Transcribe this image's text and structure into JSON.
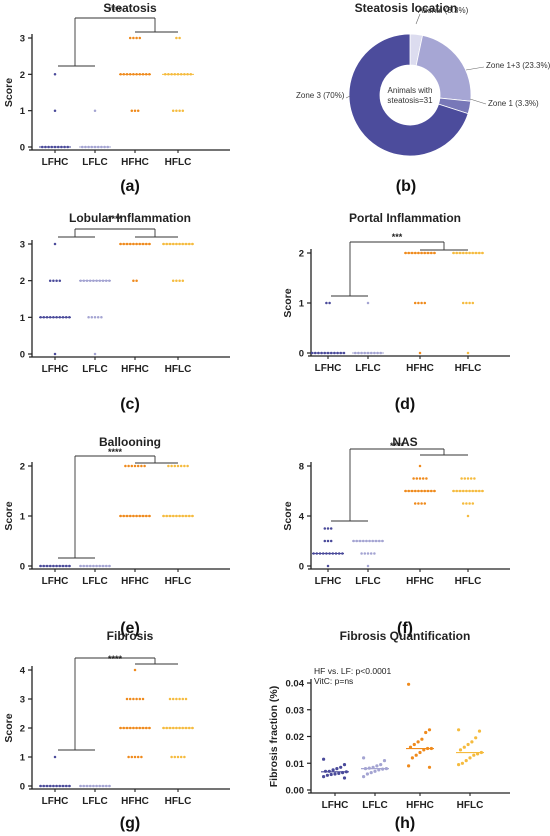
{
  "figure": {
    "colors": {
      "LFHC": "#4a4a9a",
      "LFLC": "#a4a4d2",
      "HFHC": "#ef8a1c",
      "HFLC": "#f5bb3e",
      "axis": "#222222"
    }
  },
  "chart_data": [
    {
      "id": "a",
      "type": "scatter",
      "title": "Steatosis",
      "caption": "(a)",
      "ylabel": "Score",
      "ylim": [
        0,
        3
      ],
      "yticks": [
        "0",
        "1",
        "2",
        "3"
      ],
      "categories": [
        "LFHC",
        "LFLC",
        "HFHC",
        "HFLC"
      ],
      "significance": "****",
      "series": [
        {
          "group": "LFHC",
          "points": [
            {
              "y": 2,
              "n": 1
            },
            {
              "y": 1,
              "n": 1
            },
            {
              "y": 0,
              "n": 9
            }
          ]
        },
        {
          "group": "LFLC",
          "points": [
            {
              "y": 1,
              "n": 1
            },
            {
              "y": 0,
              "n": 9
            }
          ]
        },
        {
          "group": "HFHC",
          "points": [
            {
              "y": 3,
              "n": 4
            },
            {
              "y": 2,
              "n": 10
            },
            {
              "y": 1,
              "n": 3
            }
          ]
        },
        {
          "group": "HFLC",
          "points": [
            {
              "y": 3,
              "n": 2
            },
            {
              "y": 2,
              "n": 9
            },
            {
              "y": 1,
              "n": 4
            }
          ]
        }
      ]
    },
    {
      "id": "b",
      "type": "pie",
      "title": "Steatosis location",
      "caption": "(b)",
      "center_label": [
        "Animals with",
        "steatosis=31"
      ],
      "slices": [
        {
          "label": "Azonal (3.3%)",
          "value": 3.3
        },
        {
          "label": "Zone 1+3 (23.3%)",
          "value": 23.3
        },
        {
          "label": "Zone 1 (3.3%)",
          "value": 3.3
        },
        {
          "label": "Zone 3 (70%)",
          "value": 70
        }
      ]
    },
    {
      "id": "c",
      "type": "scatter",
      "title": "Lobular Inflammation",
      "caption": "(c)",
      "ylabel": "",
      "ylim": [
        0,
        3
      ],
      "yticks": [
        "0",
        "1",
        "2",
        "3"
      ],
      "categories": [
        "LFHC",
        "LFLC",
        "HFHC",
        "HFLC"
      ],
      "significance": "****",
      "series": [
        {
          "group": "LFHC",
          "points": [
            {
              "y": 3,
              "n": 1
            },
            {
              "y": 2,
              "n": 4
            },
            {
              "y": 1,
              "n": 10
            },
            {
              "y": 0,
              "n": 1
            }
          ]
        },
        {
          "group": "LFLC",
          "points": [
            {
              "y": 2,
              "n": 10
            },
            {
              "y": 1,
              "n": 5
            },
            {
              "y": 0,
              "n": 1
            }
          ]
        },
        {
          "group": "HFHC",
          "points": [
            {
              "y": 3,
              "n": 10
            },
            {
              "y": 2,
              "n": 2
            }
          ]
        },
        {
          "group": "HFLC",
          "points": [
            {
              "y": 3,
              "n": 10
            },
            {
              "y": 2,
              "n": 4
            }
          ]
        }
      ]
    },
    {
      "id": "d",
      "type": "scatter",
      "title": "Portal Inflammation",
      "caption": "(d)",
      "ylabel": "Score",
      "ylim": [
        0,
        2
      ],
      "yticks": [
        "0",
        "1",
        "2"
      ],
      "categories": [
        "LFHC",
        "LFLC",
        "HFHC",
        "HFLC"
      ],
      "significance": "***",
      "series": [
        {
          "group": "LFHC",
          "points": [
            {
              "y": 1,
              "n": 2
            },
            {
              "y": 0,
              "n": 11
            }
          ]
        },
        {
          "group": "LFLC",
          "points": [
            {
              "y": 1,
              "n": 1
            },
            {
              "y": 0,
              "n": 9
            }
          ]
        },
        {
          "group": "HFHC",
          "points": [
            {
              "y": 2,
              "n": 10
            },
            {
              "y": 1,
              "n": 4
            },
            {
              "y": 0,
              "n": 1
            }
          ]
        },
        {
          "group": "HFLC",
          "points": [
            {
              "y": 2,
              "n": 10
            },
            {
              "y": 1,
              "n": 4
            },
            {
              "y": 0,
              "n": 1
            }
          ]
        }
      ]
    },
    {
      "id": "e",
      "type": "scatter",
      "title": "Ballooning",
      "caption": "(e)",
      "ylabel": "Score",
      "ylim": [
        0,
        2
      ],
      "yticks": [
        "0",
        "1",
        "2"
      ],
      "categories": [
        "LFHC",
        "LFLC",
        "HFHC",
        "HFLC"
      ],
      "significance": "****",
      "series": [
        {
          "group": "LFHC",
          "points": [
            {
              "y": 0,
              "n": 10
            }
          ]
        },
        {
          "group": "LFLC",
          "points": [
            {
              "y": 0,
              "n": 10
            }
          ]
        },
        {
          "group": "HFHC",
          "points": [
            {
              "y": 2,
              "n": 7
            },
            {
              "y": 1,
              "n": 10
            }
          ]
        },
        {
          "group": "HFLC",
          "points": [
            {
              "y": 2,
              "n": 7
            },
            {
              "y": 1,
              "n": 10
            }
          ]
        }
      ]
    },
    {
      "id": "f",
      "type": "scatter",
      "title": "NAS",
      "caption": "(f)",
      "ylabel": "Score",
      "ylim": [
        0,
        8
      ],
      "yticks": [
        "0",
        "4",
        "8"
      ],
      "ytick_values": [
        0,
        4,
        8
      ],
      "categories": [
        "LFHC",
        "LFLC",
        "HFHC",
        "HFLC"
      ],
      "significance": "****",
      "series": [
        {
          "group": "LFHC",
          "points": [
            {
              "y": 3,
              "n": 3
            },
            {
              "y": 2,
              "n": 3
            },
            {
              "y": 1,
              "n": 10
            },
            {
              "y": 0,
              "n": 1
            }
          ]
        },
        {
          "group": "LFLC",
          "points": [
            {
              "y": 2,
              "n": 10
            },
            {
              "y": 1,
              "n": 5
            },
            {
              "y": 0,
              "n": 1
            }
          ]
        },
        {
          "group": "HFHC",
          "points": [
            {
              "y": 8,
              "n": 1
            },
            {
              "y": 7,
              "n": 5
            },
            {
              "y": 6,
              "n": 10
            },
            {
              "y": 5,
              "n": 4
            }
          ]
        },
        {
          "group": "HFLC",
          "points": [
            {
              "y": 7,
              "n": 5
            },
            {
              "y": 6,
              "n": 10
            },
            {
              "y": 5,
              "n": 4
            },
            {
              "y": 4,
              "n": 1
            }
          ]
        }
      ]
    },
    {
      "id": "g",
      "type": "scatter",
      "title": "Fibrosis",
      "caption": "(g)",
      "ylabel": "Score",
      "ylim": [
        0,
        4
      ],
      "yticks": [
        "0",
        "1",
        "2",
        "3",
        "4"
      ],
      "categories": [
        "LFHC",
        "LFLC",
        "HFHC",
        "HFLC"
      ],
      "significance": "****",
      "series": [
        {
          "group": "LFHC",
          "points": [
            {
              "y": 1,
              "n": 1
            },
            {
              "y": 0,
              "n": 10
            }
          ]
        },
        {
          "group": "LFLC",
          "points": [
            {
              "y": 0,
              "n": 10
            }
          ]
        },
        {
          "group": "HFHC",
          "points": [
            {
              "y": 4,
              "n": 1
            },
            {
              "y": 3,
              "n": 6
            },
            {
              "y": 2,
              "n": 10
            },
            {
              "y": 1,
              "n": 5
            }
          ]
        },
        {
          "group": "HFLC",
          "points": [
            {
              "y": 3,
              "n": 6
            },
            {
              "y": 2,
              "n": 10
            },
            {
              "y": 1,
              "n": 5
            }
          ]
        }
      ]
    },
    {
      "id": "h",
      "type": "scatter",
      "title": "Fibrosis Quantification",
      "caption": "(h)",
      "ylabel": "Fibrosis fraction (%)",
      "ylim": [
        0,
        0.04
      ],
      "yticks": [
        "0.00",
        "0.01",
        "0.02",
        "0.03",
        "0.04"
      ],
      "ytick_values": [
        0,
        0.01,
        0.02,
        0.03,
        0.04
      ],
      "categories": [
        "LFHC",
        "LFLC",
        "HFHC",
        "HFLC"
      ],
      "annotation": [
        "HF vs. LF: p<0.0001",
        "VitC: p=ns"
      ],
      "medians": [
        0.0068,
        0.008,
        0.0155,
        0.014
      ],
      "series": [
        {
          "group": "LFHC",
          "values": [
            0.0115,
            0.0095,
            0.0085,
            0.008,
            0.0075,
            0.007,
            0.007,
            0.0068,
            0.0065,
            0.0062,
            0.006,
            0.0058,
            0.0055,
            0.005,
            0.0045
          ]
        },
        {
          "group": "LFLC",
          "values": [
            0.012,
            0.011,
            0.0095,
            0.009,
            0.0085,
            0.0082,
            0.008,
            0.008,
            0.0078,
            0.0075,
            0.007,
            0.0065,
            0.006,
            0.005
          ]
        },
        {
          "group": "HFHC",
          "values": [
            0.0395,
            0.0225,
            0.0215,
            0.019,
            0.018,
            0.017,
            0.016,
            0.0155,
            0.0155,
            0.015,
            0.014,
            0.013,
            0.012,
            0.009,
            0.0085
          ]
        },
        {
          "group": "HFLC",
          "values": [
            0.0225,
            0.022,
            0.0195,
            0.018,
            0.017,
            0.016,
            0.015,
            0.014,
            0.0135,
            0.013,
            0.012,
            0.011,
            0.01,
            0.0095
          ]
        }
      ]
    }
  ]
}
